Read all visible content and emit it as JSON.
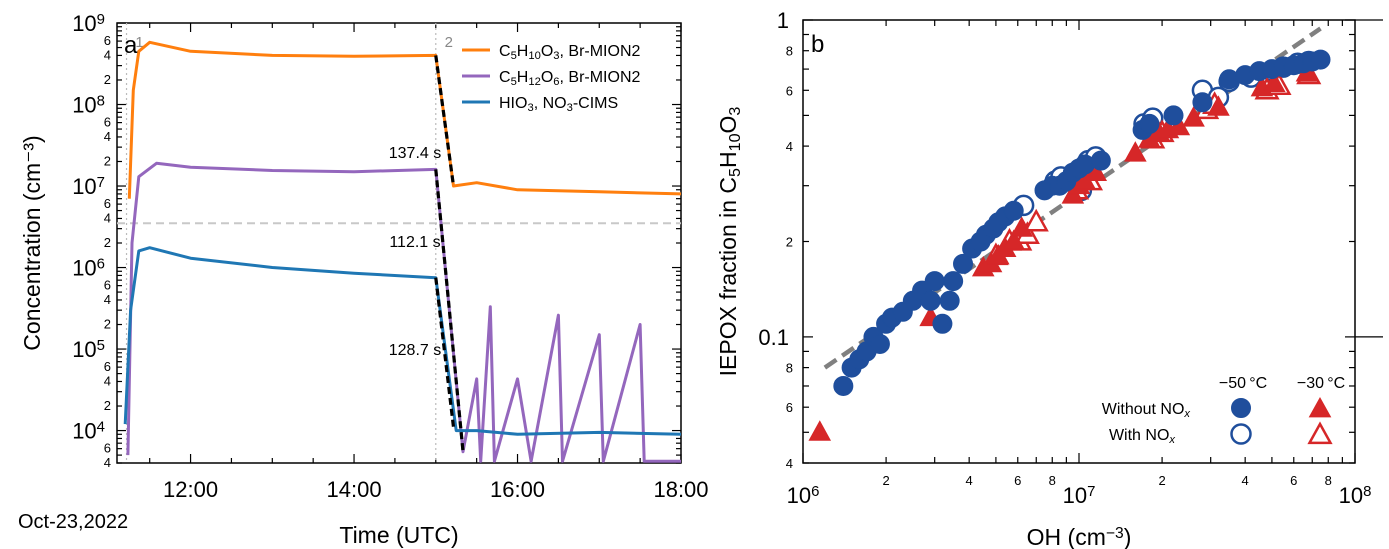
{
  "chart_data": [
    {
      "panel": "a",
      "type": "line",
      "xlabel": "Time (UTC)",
      "ylabel": "Concentration (cm⁻³)",
      "date_label": "Oct-23,2022",
      "xlim": [
        "11:06",
        "18:00"
      ],
      "ylim": [
        4000,
        1000000000
      ],
      "yscale": "log",
      "x_ticks": [
        "12:00",
        "14:00",
        "16:00",
        "18:00"
      ],
      "y_ticks": [
        "10^4",
        "10^5",
        "10^6",
        "10^7",
        "10^8",
        "10^9"
      ],
      "reference_line_y": 3500000,
      "markers": [
        {
          "label": "1",
          "x": "11:13"
        },
        {
          "label": "2",
          "x": "15:00"
        }
      ],
      "legend_position": "top-right",
      "series": [
        {
          "name": "C5H10O3, Br-MION2",
          "color": "#ff7f0e",
          "points": [
            [
              "11:15",
              7000000.0
            ],
            [
              "11:18",
              150000000.0
            ],
            [
              "11:22",
              450000000.0
            ],
            [
              "11:30",
              580000000.0
            ],
            [
              "12:00",
              450000000.0
            ],
            [
              "13:00",
              400000000.0
            ],
            [
              "14:00",
              390000000.0
            ],
            [
              "15:00",
              400000000.0
            ],
            [
              "15:13",
              10000000.0
            ],
            [
              "15:30",
              11000000.0
            ],
            [
              "16:00",
              9000000.0
            ],
            [
              "17:00",
              8500000.0
            ],
            [
              "18:00",
              8000000.0
            ]
          ]
        },
        {
          "name": "C5H12O6, Br-MION2",
          "color": "#9467bd",
          "points": [
            [
              "11:14",
              5000
            ],
            [
              "11:17",
              2000000.0
            ],
            [
              "11:22",
              13000000.0
            ],
            [
              "11:35",
              19000000.0
            ],
            [
              "12:00",
              17000000.0
            ],
            [
              "13:00",
              15500000.0
            ],
            [
              "14:00",
              15000000.0
            ],
            [
              "15:00",
              16000000.0
            ],
            [
              "15:20",
              5500
            ],
            [
              "15:30",
              43000.0
            ],
            [
              "15:33",
              4200
            ],
            [
              "15:40",
              330000.0
            ],
            [
              "15:43",
              4200
            ],
            [
              "16:00",
              43000.0
            ],
            [
              "16:10",
              4200
            ],
            [
              "16:30",
              260000.0
            ],
            [
              "16:33",
              4200
            ],
            [
              "17:00",
              150000.0
            ],
            [
              "17:03",
              4200
            ],
            [
              "17:30",
              200000.0
            ],
            [
              "17:33",
              4200
            ],
            [
              "18:00",
              4200
            ]
          ]
        },
        {
          "name": "HIO3, NO3-CIMS",
          "color": "#1f77b4",
          "points": [
            [
              "11:12",
              12000.0
            ],
            [
              "11:16",
              300000.0
            ],
            [
              "11:22",
              1600000.0
            ],
            [
              "11:30",
              1750000.0
            ],
            [
              "12:00",
              1300000.0
            ],
            [
              "13:00",
              1000000.0
            ],
            [
              "14:00",
              850000.0
            ],
            [
              "15:00",
              750000.0
            ],
            [
              "15:15",
              10000.0
            ],
            [
              "15:30",
              10000.0
            ],
            [
              "16:00",
              9000.0
            ],
            [
              "17:00",
              9500.0
            ],
            [
              "18:00",
              9000.0
            ]
          ]
        }
      ],
      "fits": [
        {
          "label": "137.4 s",
          "from": [
            "15:00",
            400000000.0
          ],
          "to": [
            "15:13",
            10000000.0
          ]
        },
        {
          "label": "112.1 s",
          "from": [
            "15:00",
            16000000.0
          ],
          "to": [
            "15:20",
            5500
          ]
        },
        {
          "label": "128.7 s",
          "from": [
            "15:00",
            750000.0
          ],
          "to": [
            "15:13",
            11000.0
          ]
        }
      ]
    },
    {
      "panel": "b",
      "type": "scatter",
      "xlabel": "OH (cm⁻³)",
      "ylabel": "IEPOX fraction in C5H10O3",
      "xscale": "log",
      "yscale": "log",
      "xlim": [
        1000000,
        100000000
      ],
      "ylim": [
        0.04,
        1
      ],
      "x_ticks": [
        "10^6",
        "10^7",
        "10^8"
      ],
      "y_ticks": [
        "0.1",
        "1"
      ],
      "fit_line": {
        "from": [
          1200000.0,
          0.08
        ],
        "to": [
          75000000.0,
          0.94
        ],
        "style": "dashed",
        "color": "#808080"
      },
      "legend": {
        "position": "bottom-right",
        "headers": [
          "−50 °C",
          "−30 °C"
        ],
        "rows": [
          "Without NOx",
          "With NOx"
        ]
      },
      "series": [
        {
          "name": "Without NOx, −50 °C",
          "marker": "circle-filled",
          "color": "#1f4e9c",
          "points": [
            [
              1400000.0,
              0.07
            ],
            [
              1500000.0,
              0.08
            ],
            [
              1600000.0,
              0.085
            ],
            [
              1700000.0,
              0.09
            ],
            [
              1800000.0,
              0.1
            ],
            [
              1900000.0,
              0.095
            ],
            [
              2000000.0,
              0.11
            ],
            [
              2100000.0,
              0.115
            ],
            [
              2300000.0,
              0.12
            ],
            [
              2500000.0,
              0.13
            ],
            [
              2700000.0,
              0.14
            ],
            [
              2900000.0,
              0.13
            ],
            [
              3000000.0,
              0.15
            ],
            [
              3200000.0,
              0.11
            ],
            [
              3400000.0,
              0.13
            ],
            [
              3500000.0,
              0.15
            ],
            [
              3800000.0,
              0.17
            ],
            [
              4100000.0,
              0.19
            ],
            [
              4400000.0,
              0.2
            ],
            [
              4600000.0,
              0.21
            ],
            [
              4900000.0,
              0.22
            ],
            [
              5100000.0,
              0.23
            ],
            [
              5400000.0,
              0.24
            ],
            [
              5800000.0,
              0.25
            ],
            [
              7500000.0,
              0.29
            ],
            [
              8000000.0,
              0.3
            ],
            [
              8500000.0,
              0.3
            ],
            [
              9000000.0,
              0.31
            ],
            [
              9500000.0,
              0.33
            ],
            [
              10000000.0,
              0.34
            ],
            [
              10500000.0,
              0.35
            ],
            [
              12000000.0,
              0.36
            ],
            [
              17000000.0,
              0.45
            ],
            [
              18000000.0,
              0.47
            ],
            [
              22000000.0,
              0.5
            ],
            [
              28000000.0,
              0.55
            ],
            [
              35000000.0,
              0.65
            ],
            [
              40000000.0,
              0.67
            ],
            [
              45000000.0,
              0.69
            ],
            [
              50000000.0,
              0.7
            ],
            [
              55000000.0,
              0.71
            ],
            [
              60000000.0,
              0.72
            ],
            [
              65000000.0,
              0.73
            ],
            [
              70000000.0,
              0.74
            ],
            [
              75000000.0,
              0.75
            ]
          ]
        },
        {
          "name": "With NOx, −50 °C",
          "marker": "circle-open",
          "color": "#1f4e9c",
          "points": [
            [
              6300000.0,
              0.26
            ],
            [
              8200000.0,
              0.31
            ],
            [
              8600000.0,
              0.32
            ],
            [
              9300000.0,
              0.31
            ],
            [
              10200000.0,
              0.29
            ],
            [
              10800000.0,
              0.36
            ],
            [
              11500000.0,
              0.37
            ],
            [
              17200000.0,
              0.47
            ],
            [
              18500000.0,
              0.49
            ],
            [
              28000000.0,
              0.6
            ],
            [
              32000000.0,
              0.57
            ],
            [
              35000000.0,
              0.64
            ],
            [
              42000000.0,
              0.66
            ],
            [
              50000000.0,
              0.69
            ],
            [
              55000000.0,
              0.71
            ],
            [
              62000000.0,
              0.73
            ],
            [
              68000000.0,
              0.74
            ]
          ]
        },
        {
          "name": "Without NOx, −30 °C",
          "marker": "triangle-filled",
          "color": "#d62728",
          "points": [
            [
              1150000.0,
              0.05
            ],
            [
              2900000.0,
              0.115
            ],
            [
              4500000.0,
              0.165
            ],
            [
              4800000.0,
              0.17
            ],
            [
              5100000.0,
              0.18
            ],
            [
              5400000.0,
              0.19
            ],
            [
              5800000.0,
              0.2
            ],
            [
              6200000.0,
              0.22
            ],
            [
              9500000.0,
              0.28
            ],
            [
              10000000.0,
              0.3
            ],
            [
              10500000.0,
              0.31
            ],
            [
              11500000.0,
              0.33
            ],
            [
              16000000.0,
              0.38
            ],
            [
              18000000.0,
              0.42
            ],
            [
              19500000.0,
              0.44
            ],
            [
              21000000.0,
              0.45
            ],
            [
              23000000.0,
              0.46
            ],
            [
              26000000.0,
              0.49
            ],
            [
              32000000.0,
              0.53
            ],
            [
              46000000.0,
              0.61
            ],
            [
              51000000.0,
              0.63
            ],
            [
              67000000.0,
              0.68
            ]
          ]
        },
        {
          "name": "With NOx, −30 °C",
          "marker": "triangle-open",
          "color": "#d62728",
          "points": [
            [
              5000000.0,
              0.18
            ],
            [
              5600000.0,
              0.2
            ],
            [
              6100000.0,
              0.2
            ],
            [
              6500000.0,
              0.21
            ],
            [
              7000000.0,
              0.23
            ],
            [
              9800000.0,
              0.29
            ],
            [
              11000000.0,
              0.31
            ],
            [
              18500000.0,
              0.42
            ],
            [
              20000000.0,
              0.44
            ],
            [
              29000000.0,
              0.52
            ],
            [
              31000000.0,
              0.54
            ],
            [
              48000000.0,
              0.6
            ],
            [
              53000000.0,
              0.62
            ],
            [
              68000000.0,
              0.67
            ]
          ]
        }
      ]
    }
  ]
}
